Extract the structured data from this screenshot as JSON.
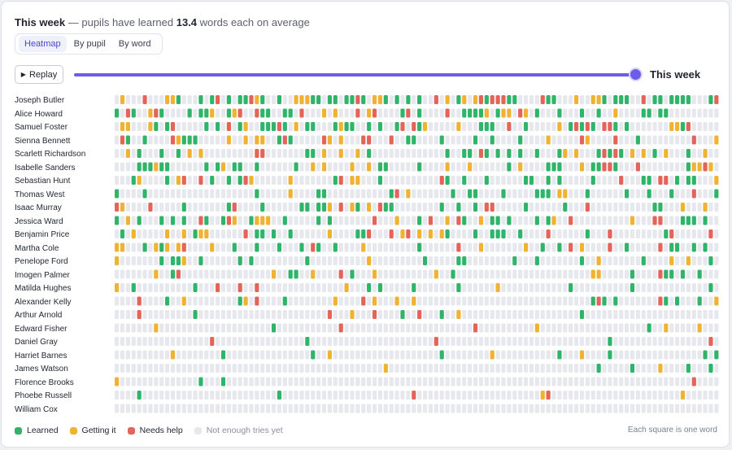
{
  "summary": {
    "bold_prefix": "This week",
    "text_before": " — pupils have learned ",
    "value": "13.4",
    "text_after": " words each on average"
  },
  "tabs": [
    {
      "label": "Heatmap",
      "active": true
    },
    {
      "label": "By pupil",
      "active": false
    },
    {
      "label": "By word",
      "active": false
    }
  ],
  "replay_label": "Replay",
  "timeline": {
    "label": "This week",
    "position": 1.0
  },
  "colors": {
    "learned": "#2fb46a",
    "getting_it": "#f0b232",
    "needs_help": "#e4645a",
    "not_enough": "#e6e8ee",
    "accent": "#6c5ce7"
  },
  "pupils": [
    "Joseph Butler",
    "Alice Howard",
    "Samuel Foster",
    "Sienna Bennett",
    "Scarlett Richardson",
    "Isabelle Sanders",
    "Sebastian Hunt",
    "Thomas West",
    "Isaac Murray",
    "Jessica Ward",
    "Benjamin Price",
    "Martha Cole",
    "Penelope Ford",
    "Imogen Palmer",
    "Matilda Hughes",
    "Alexander Kelly",
    "Arthur Arnold",
    "Edward Fisher",
    "Daniel Gray",
    "Harriet Barnes",
    "James Watson",
    "Florence Brooks",
    "Phoebe Russell",
    "William Cox"
  ],
  "word_count": 108,
  "word_status_density": [
    0.62,
    0.5,
    0.42,
    0.34,
    0.32,
    0.28,
    0.4,
    0.2,
    0.24,
    0.4,
    0.28,
    0.26,
    0.24,
    0.16,
    0.12,
    0.14,
    0.11,
    0.1,
    0.08,
    0.07,
    0.07,
    0.05,
    0.03,
    0.03
  ],
  "legend": {
    "learned": "Learned",
    "getting_it": "Getting it",
    "needs_help": "Needs help",
    "not_enough": "Not enough tries yet"
  },
  "footnote": "Each square is one word"
}
